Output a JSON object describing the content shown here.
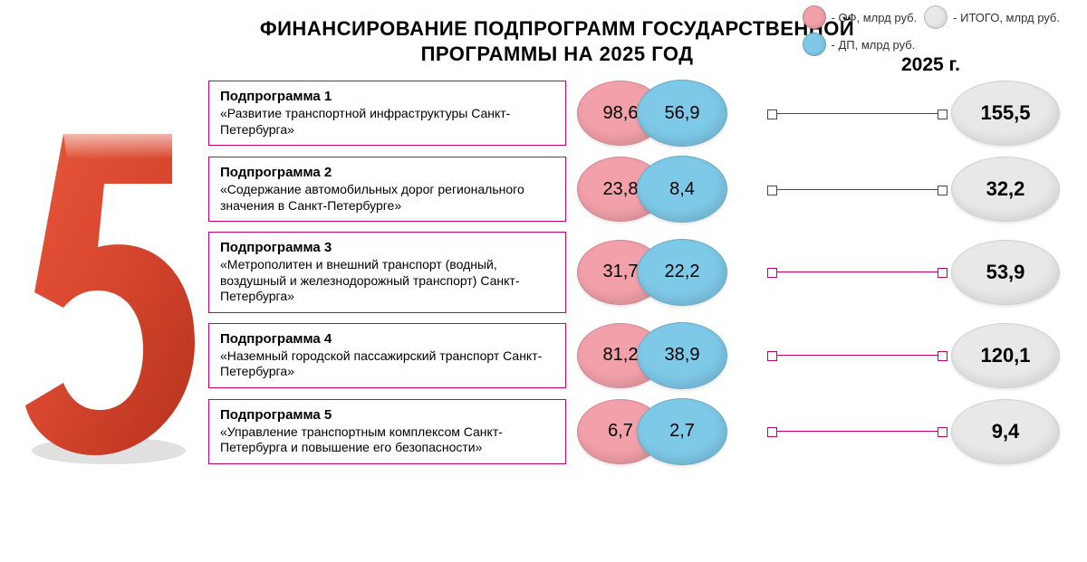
{
  "title_line1": "ФИНАНСИРОВАНИЕ ПОДПРОГРАММ ГОСУДАРСТВЕННОЙ",
  "title_line2": "ПРОГРАММЫ НА 2025 ГОД",
  "legend": {
    "of": "- ОФ, млрд руб.",
    "dp": "- ДП, млрд руб.",
    "total": "- ИТОГО, млрд руб."
  },
  "year_label": "2025 г.",
  "colors": {
    "of": "#f2a0a9",
    "dp": "#7ec9e8",
    "total": "#e8e8e8",
    "border_box": "#c7006e",
    "big5": "#d6452d"
  },
  "font": {
    "title_size": 22,
    "name_size": 15,
    "desc_size": 14,
    "bubble_size": 20,
    "total_size": 22
  },
  "rows": [
    {
      "name": "Подпрограмма 1",
      "desc": "«Развитие транспортной инфраструктуры Санкт-Петербурга»",
      "of": "98,6",
      "dp": "56,9",
      "total": "155,5"
    },
    {
      "name": "Подпрограмма 2",
      "desc": "«Содержание автомобильных дорог регионального значения в Санкт-Петербурге»",
      "of": "23,8",
      "dp": "8,4",
      "total": "32,2"
    },
    {
      "name": "Подпрограмма 3",
      "desc": "«Метрополитен и внешний транспорт (водный, воздушный и железнодорожный транспорт) Санкт-Петербурга»",
      "of": "31,7",
      "dp": "22,2",
      "total": "53,9"
    },
    {
      "name": "Подпрограмма 4",
      "desc": "«Наземный городской пассажирский транспорт Санкт-Петербурга»",
      "of": "81,2",
      "dp": "38,9",
      "total": "120,1"
    },
    {
      "name": "Подпрограмма 5",
      "desc": "«Управление транспортным комплексом Санкт-Петербурга и повышение его безопасности»",
      "of": "6,7",
      "dp": "2,7",
      "total": "9,4"
    }
  ]
}
